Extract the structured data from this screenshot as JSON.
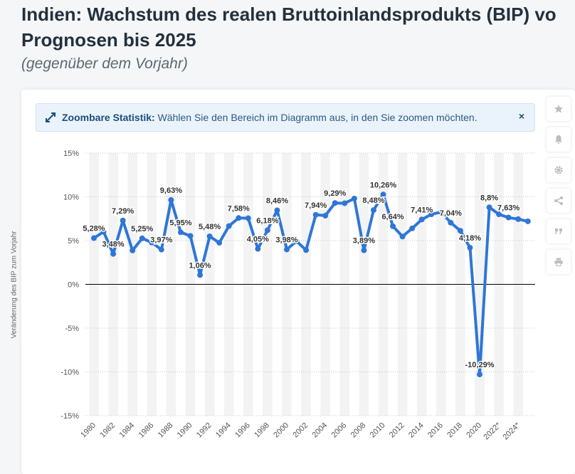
{
  "header": {
    "title_line1": "Indien: Wachstum des realen Bruttoinlandsprodukts (BIP) vo",
    "title_line2": "Prognosen bis 2025",
    "subtitle": "(gegenüber dem Vorjahr)"
  },
  "banner": {
    "label_bold": "Zoombare Statistik:",
    "label_text": " Wählen Sie den Bereich im Diagramm aus, in den Sie zoomen möchten.",
    "close_glyph": "×"
  },
  "toolbar": {
    "icons": [
      "star-icon",
      "bell-icon",
      "gear-icon",
      "share-icon",
      "quote-icon",
      "print-icon"
    ]
  },
  "colors": {
    "line": "#2f76d6",
    "grid": "#c8c8c8",
    "zero": "#000000",
    "band": "#f3f3f3"
  },
  "chart_data": {
    "type": "line",
    "title": "Indien: Wachstum des realen Bruttoinlandsprodukts (BIP)",
    "ylabel": "Veränderung des BIP zum Vorjahr",
    "xlabel": "",
    "ylim": [
      -15,
      15
    ],
    "yticks": [
      15,
      10,
      5,
      0,
      -5,
      -10,
      -15
    ],
    "ytick_labels": [
      "15%",
      "10%",
      "5%",
      "0%",
      "-5%",
      "-10%",
      "-15%"
    ],
    "x_tick_labels": [
      "1980",
      "1982",
      "1984",
      "1986",
      "1988",
      "1990",
      "1992",
      "1994",
      "1996",
      "1998",
      "2000",
      "2002",
      "2004",
      "2006",
      "2008",
      "2010",
      "2012",
      "2014",
      "2016",
      "2018",
      "2020",
      "2022*",
      "2024*"
    ],
    "x_tick_years": [
      1980,
      1982,
      1984,
      1986,
      1988,
      1990,
      1992,
      1994,
      1996,
      1998,
      2000,
      2002,
      2004,
      2006,
      2008,
      2010,
      2012,
      2014,
      2016,
      2018,
      2020,
      2022,
      2024
    ],
    "x": [
      1980,
      1981,
      1982,
      1983,
      1984,
      1985,
      1986,
      1987,
      1988,
      1989,
      1990,
      1991,
      1992,
      1993,
      1994,
      1995,
      1996,
      1997,
      1998,
      1999,
      2000,
      2001,
      2002,
      2003,
      2004,
      2005,
      2006,
      2007,
      2008,
      2009,
      2010,
      2011,
      2012,
      2013,
      2014,
      2015,
      2016,
      2017,
      2018,
      2019,
      2020,
      2021,
      2022,
      2023,
      2024,
      2025
    ],
    "values": [
      5.28,
      6.0,
      3.48,
      7.29,
      3.87,
      5.25,
      4.78,
      3.97,
      9.63,
      5.95,
      5.53,
      1.06,
      5.48,
      4.75,
      6.66,
      7.58,
      7.55,
      4.05,
      6.18,
      8.46,
      3.98,
      4.93,
      3.91,
      7.94,
      7.85,
      9.29,
      9.26,
      9.8,
      3.89,
      8.48,
      10.26,
      6.64,
      5.46,
      6.39,
      7.41,
      8.0,
      8.26,
      7.04,
      6.12,
      4.18,
      -10.29,
      8.8,
      8.0,
      7.63,
      7.45,
      7.2
    ],
    "data_labels": [
      {
        "year": 1980,
        "text": "5,28%"
      },
      {
        "year": 1982,
        "text": "3,48%"
      },
      {
        "year": 1983,
        "text": "7,29%"
      },
      {
        "year": 1985,
        "text": "5,25%"
      },
      {
        "year": 1987,
        "text": "3,97%"
      },
      {
        "year": 1988,
        "text": "9,63%"
      },
      {
        "year": 1989,
        "text": "5,95%"
      },
      {
        "year": 1991,
        "text": "1,06%"
      },
      {
        "year": 1992,
        "text": "5,48%"
      },
      {
        "year": 1995,
        "text": "7,58%"
      },
      {
        "year": 1997,
        "text": "4,05%"
      },
      {
        "year": 1998,
        "text": "6,18%"
      },
      {
        "year": 1999,
        "text": "8,46%"
      },
      {
        "year": 2000,
        "text": "3,98%"
      },
      {
        "year": 2003,
        "text": "7,94%"
      },
      {
        "year": 2005,
        "text": "9,29%"
      },
      {
        "year": 2008,
        "text": "3,89%"
      },
      {
        "year": 2009,
        "text": "8,48%"
      },
      {
        "year": 2010,
        "text": "10,26%"
      },
      {
        "year": 2011,
        "text": "6,64%"
      },
      {
        "year": 2014,
        "text": "7,41%"
      },
      {
        "year": 2017,
        "text": "7,04%"
      },
      {
        "year": 2019,
        "text": "4,18%"
      },
      {
        "year": 2020,
        "text": "-10,29%"
      },
      {
        "year": 2021,
        "text": "8,8%"
      },
      {
        "year": 2023,
        "text": "7,63%"
      }
    ]
  }
}
